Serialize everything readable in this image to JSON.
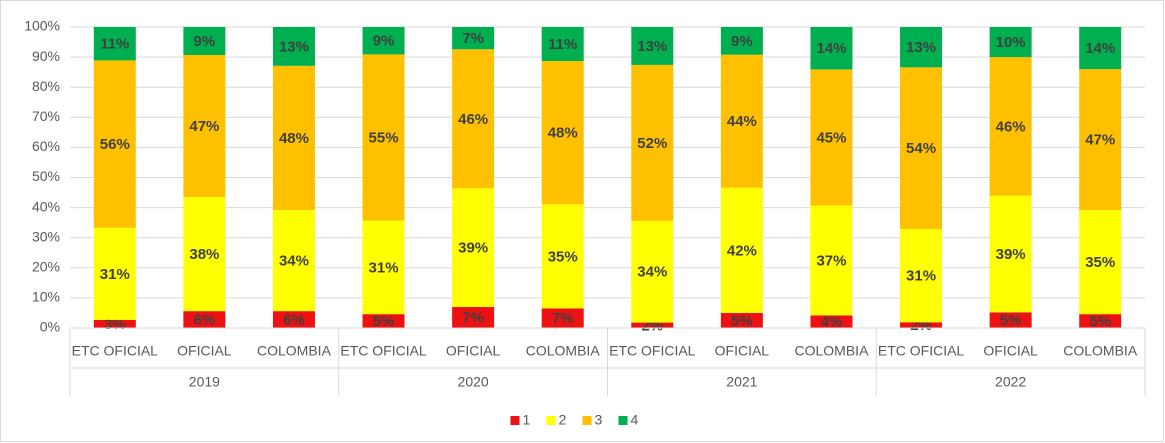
{
  "chart_data": {
    "type": "stacked_bar",
    "categories": [
      "ETC OFICIAL",
      "OFICIAL",
      "COLOMBIA",
      "ETC OFICIAL",
      "OFICIAL",
      "COLOMBIA",
      "ETC OFICIAL",
      "OFICIAL",
      "COLOMBIA",
      "ETC OFICIAL",
      "OFICIAL",
      "COLOMBIA"
    ],
    "groups": [
      "2019",
      "2020",
      "2021",
      "2022"
    ],
    "series": [
      {
        "name": "1",
        "color": "#ee1111",
        "values": [
          2.7,
          5.6,
          5.6,
          4.6,
          7.0,
          6.5,
          1.8,
          5.0,
          4.2,
          1.9,
          5.2,
          4.6
        ],
        "value_labels": [
          "3%",
          "6%",
          "6%",
          "5%",
          "7%",
          "7%",
          "2%",
          "5%",
          "4%",
          "2%",
          "5%",
          "5%"
        ]
      },
      {
        "name": "2",
        "color": "#ffff00",
        "values": [
          30.6,
          37.9,
          33.6,
          31.1,
          39.4,
          34.6,
          33.8,
          41.6,
          36.5,
          31.0,
          38.8,
          34.6
        ],
        "value_labels": [
          "31%",
          "38%",
          "34%",
          "31%",
          "39%",
          "35%",
          "34%",
          "42%",
          "37%",
          "31%",
          "39%",
          "35%"
        ]
      },
      {
        "name": "3",
        "color": "#ffc000",
        "values": [
          55.6,
          47.2,
          47.9,
          55.2,
          46.2,
          47.6,
          51.8,
          44.2,
          45.2,
          53.7,
          46.0,
          46.8
        ],
        "value_labels": [
          "56%",
          "47%",
          "48%",
          "55%",
          "46%",
          "48%",
          "52%",
          "44%",
          "45%",
          "54%",
          "46%",
          "47%"
        ]
      },
      {
        "name": "4",
        "color": "#00b050",
        "values": [
          11.1,
          9.3,
          12.9,
          9.1,
          7.4,
          11.3,
          12.6,
          9.2,
          14.1,
          13.4,
          10.0,
          14.0
        ],
        "value_labels": [
          "11%",
          "9%",
          "13%",
          "9%",
          "7%",
          "11%",
          "13%",
          "9%",
          "14%",
          "13%",
          "10%",
          "14%"
        ]
      }
    ],
    "ylim": [
      0,
      100
    ],
    "yticks": [
      {
        "value": 0,
        "label": "0%"
      },
      {
        "value": 10,
        "label": "10%"
      },
      {
        "value": 20,
        "label": "20%"
      },
      {
        "value": 30,
        "label": "30%"
      },
      {
        "value": 40,
        "label": "40%"
      },
      {
        "value": 50,
        "label": "50%"
      },
      {
        "value": 60,
        "label": "60%"
      },
      {
        "value": 70,
        "label": "70%"
      },
      {
        "value": 80,
        "label": "80%"
      },
      {
        "value": 90,
        "label": "90%"
      },
      {
        "value": 100,
        "label": "100%"
      }
    ],
    "grid": true,
    "legend": "bottom"
  }
}
